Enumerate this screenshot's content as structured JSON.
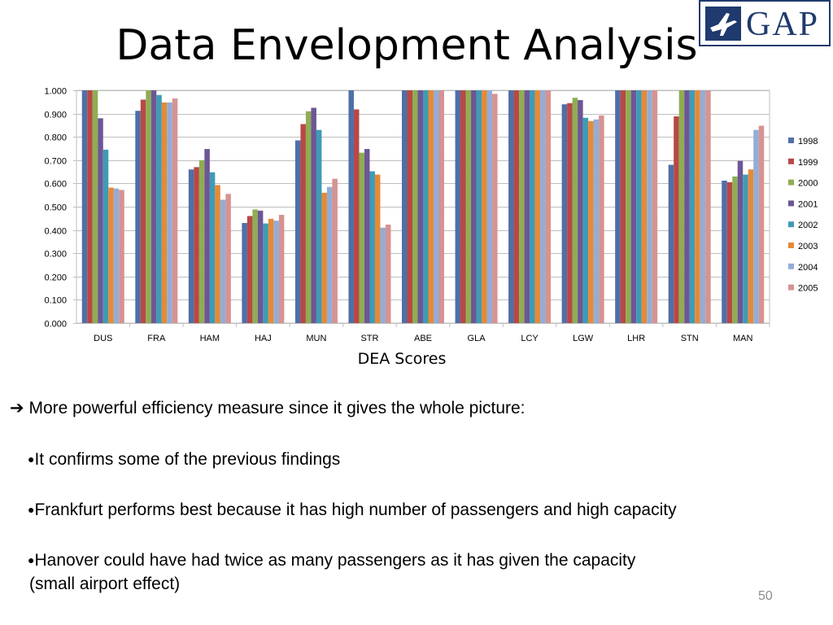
{
  "slide": {
    "title": "Data Envelopment Analysis",
    "logo_text": "GAP",
    "page_number": "50",
    "arrow_line": "More powerful efficiency measure since it gives the whole picture:",
    "bullets": [
      "It confirms some of the previous findings",
      "Frankfurt performs best because it has high number of passengers and high capacity",
      "Hanover could have had twice as many passengers as it has given the capacity",
      "(small airport effect)"
    ]
  },
  "chart_data": {
    "type": "bar",
    "title": "",
    "xlabel": "DEA Scores",
    "ylabel": "",
    "ylim": [
      0,
      1
    ],
    "yticks": [
      "0.000",
      "0.100",
      "0.200",
      "0.300",
      "0.400",
      "0.500",
      "0.600",
      "0.700",
      "0.800",
      "0.900",
      "1.000"
    ],
    "grid": true,
    "legend_position": "right",
    "categories": [
      "DUS",
      "FRA",
      "HAM",
      "HAJ",
      "MUN",
      "STR",
      "ABE",
      "GLA",
      "LCY",
      "LGW",
      "LHR",
      "STN",
      "MAN"
    ],
    "series": [
      {
        "name": "1998",
        "color": "#4f6fa8",
        "values": [
          1.0,
          0.912,
          0.66,
          0.43,
          0.785,
          1.0,
          1.0,
          1.0,
          1.0,
          0.94,
          1.0,
          0.68,
          0.612
        ]
      },
      {
        "name": "1999",
        "color": "#b84845",
        "values": [
          1.0,
          0.96,
          0.67,
          0.46,
          0.855,
          0.918,
          1.0,
          1.0,
          1.0,
          0.945,
          1.0,
          0.888,
          0.605
        ]
      },
      {
        "name": "2000",
        "color": "#8fad52",
        "values": [
          1.0,
          1.0,
          0.7,
          0.488,
          0.91,
          0.732,
          1.0,
          1.0,
          1.0,
          0.968,
          1.0,
          1.0,
          0.63
        ]
      },
      {
        "name": "2001",
        "color": "#6d5696",
        "values": [
          0.88,
          1.0,
          0.748,
          0.483,
          0.925,
          0.748,
          1.0,
          1.0,
          1.0,
          0.958,
          1.0,
          1.0,
          0.697
        ]
      },
      {
        "name": "2002",
        "color": "#3f9bb5",
        "values": [
          0.745,
          0.98,
          0.648,
          0.428,
          0.83,
          0.652,
          1.0,
          1.0,
          1.0,
          0.882,
          1.0,
          1.0,
          0.638
        ]
      },
      {
        "name": "2003",
        "color": "#e58a38",
        "values": [
          0.582,
          0.948,
          0.593,
          0.448,
          0.56,
          0.638,
          1.0,
          1.0,
          1.0,
          0.868,
          1.0,
          1.0,
          0.66
        ]
      },
      {
        "name": "2004",
        "color": "#93add6",
        "values": [
          0.578,
          0.948,
          0.53,
          0.44,
          0.585,
          0.41,
          1.0,
          1.0,
          1.0,
          0.875,
          1.0,
          1.0,
          0.83
        ]
      },
      {
        "name": "2005",
        "color": "#d69391",
        "values": [
          0.572,
          0.965,
          0.555,
          0.465,
          0.62,
          0.423,
          1.0,
          0.985,
          1.0,
          0.892,
          1.0,
          1.0,
          0.848
        ]
      }
    ]
  }
}
